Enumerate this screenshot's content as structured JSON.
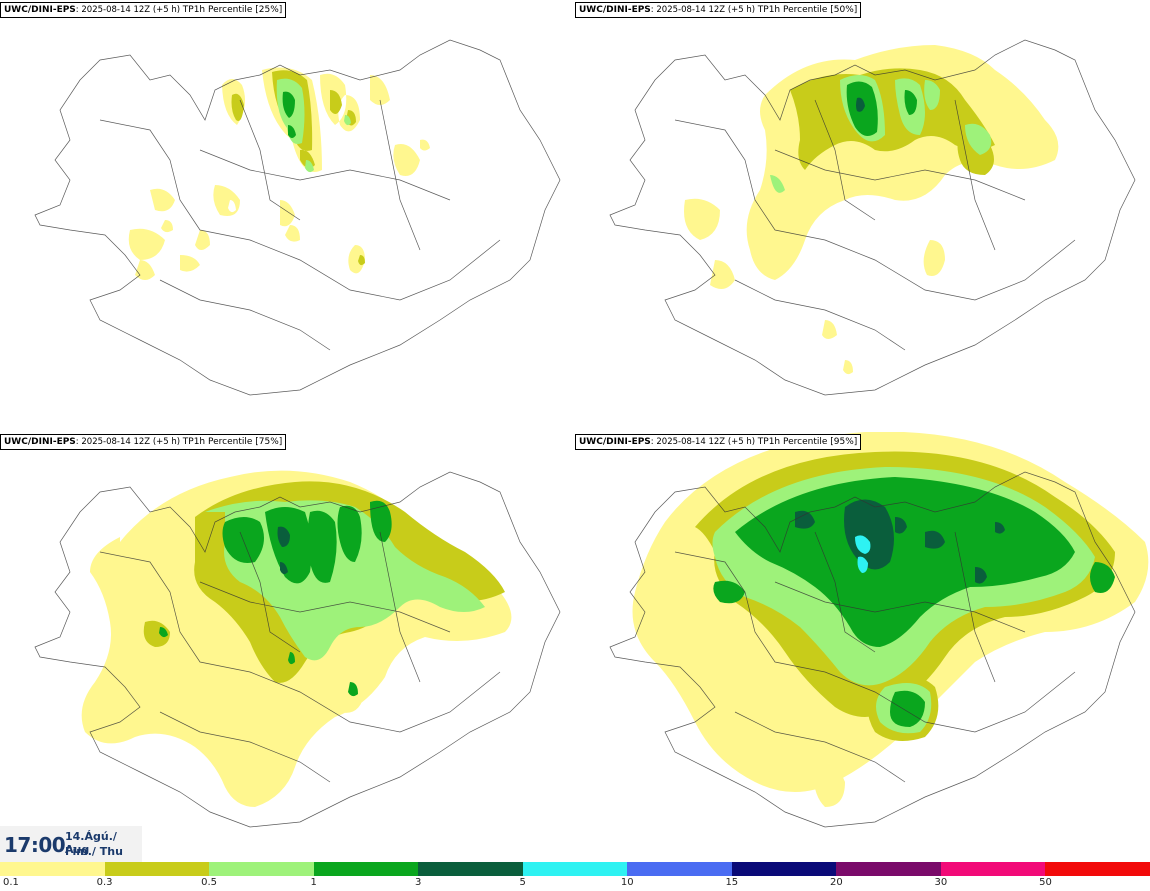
{
  "panels": [
    {
      "model": "UWC/DINI-EPS",
      "run": "2025-08-14 12Z (+5 h)",
      "param": "TP1h Percentile [25%]"
    },
    {
      "model": "UWC/DINI-EPS",
      "run": "2025-08-14 12Z (+5 h)",
      "param": "TP1h Percentile [50%]"
    },
    {
      "model": "UWC/DINI-EPS",
      "run": "2025-08-14 12Z (+5 h)",
      "param": "TP1h Percentile [75%]"
    },
    {
      "model": "UWC/DINI-EPS",
      "run": "2025-08-14 12Z (+5 h)",
      "param": "TP1h Percentile [95%]"
    }
  ],
  "time": {
    "clock": "17:00",
    "date_line1": "14.Ágú./ Aug",
    "date_line2": "Fim./ Thu"
  },
  "legend": {
    "ticks": [
      "0.1",
      "0.3",
      "0.5",
      "1",
      "3",
      "5",
      "10",
      "15",
      "20",
      "30",
      "50"
    ],
    "colors": [
      "#fff78f",
      "#c8cc1a",
      "#9ef27a",
      "#0aa61e",
      "#0a5e3c",
      "#2ef2f2",
      "#4a6cf2",
      "#0a0a78",
      "#7a0a6a",
      "#f20a78",
      "#f20a0a"
    ]
  }
}
